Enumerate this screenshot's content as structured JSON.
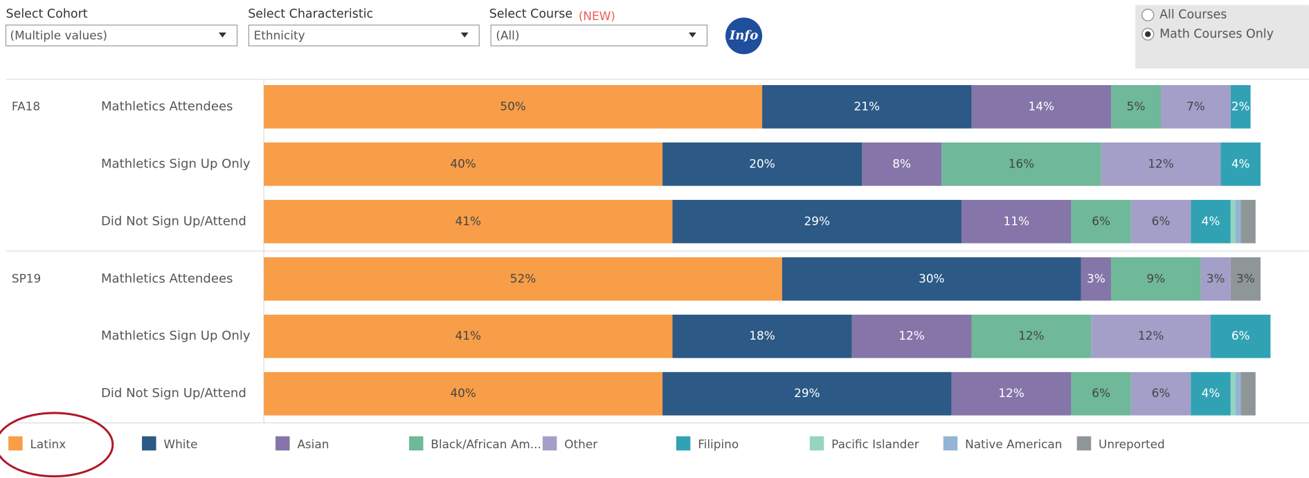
{
  "controls": {
    "cohort": {
      "label": "Select Cohort",
      "value": "(Multiple values)"
    },
    "characteristic": {
      "label": "Select Characteristic",
      "value": "Ethnicity"
    },
    "course": {
      "label": "Select Course",
      "badge": "(NEW)",
      "value": "(All)"
    },
    "info": "Info",
    "radio": {
      "options": [
        "All Courses",
        "Math Courses Only"
      ],
      "selected": 1
    }
  },
  "chart_data": {
    "type": "stacked_bar_horizontal",
    "cohorts": [
      "FA18",
      "SP19"
    ],
    "categories": [
      "Mathletics Attendees",
      "Mathletics Sign Up Only",
      "Did Not Sign Up/Attend",
      "Mathletics Attendees",
      "Mathletics Sign Up Only",
      "Did Not Sign Up/Attend"
    ],
    "xlim": [
      0,
      100
    ],
    "series": [
      {
        "name": "Latinx",
        "color": "#f89d48",
        "values": [
          50,
          40,
          41,
          52,
          41,
          40
        ],
        "value_labels": [
          "50%",
          "40%",
          "41%",
          "52%",
          "41%",
          "40%"
        ]
      },
      {
        "name": "White",
        "color": "#2c5985",
        "values": [
          21,
          20,
          29,
          30,
          18,
          29
        ],
        "value_labels": [
          "21%",
          "20%",
          "29%",
          "30%",
          "18%",
          "29%"
        ]
      },
      {
        "name": "Asian",
        "color": "#8675a8",
        "values": [
          14,
          8,
          11,
          3,
          12,
          12
        ],
        "value_labels": [
          "14%",
          "8%",
          "11%",
          "3%",
          "12%",
          "12%"
        ]
      },
      {
        "name": "Black/African Am...",
        "color": "#6fb899",
        "values": [
          5,
          16,
          6,
          9,
          12,
          6
        ],
        "value_labels": [
          "5%",
          "16%",
          "6%",
          "9%",
          "12%",
          "6%"
        ]
      },
      {
        "name": "Other",
        "color": "#a39fc9",
        "values": [
          7,
          12,
          6,
          3,
          12,
          6
        ],
        "value_labels": [
          "7%",
          "12%",
          "6%",
          "3%",
          "12%",
          "6%"
        ]
      },
      {
        "name": "Filipino",
        "color": "#31a2b4",
        "values": [
          2,
          4,
          4,
          null,
          6,
          4
        ],
        "value_labels": [
          "2%",
          "4%",
          "4%",
          null,
          "6%",
          "4%"
        ]
      },
      {
        "name": "Pacific Islander",
        "color": "#95d4c0",
        "values": [
          null,
          null,
          0.5,
          null,
          null,
          0.5
        ],
        "value_labels": [
          null,
          null,
          null,
          null,
          null,
          null
        ]
      },
      {
        "name": "Native American",
        "color": "#93b4d6",
        "values": [
          null,
          null,
          0.5,
          null,
          null,
          0.5
        ],
        "value_labels": [
          null,
          null,
          null,
          null,
          null,
          null
        ]
      },
      {
        "name": "Unreported",
        "color": "#8f9698",
        "values": [
          null,
          null,
          1.5,
          3,
          null,
          1.5
        ],
        "value_labels": [
          null,
          null,
          null,
          "3%",
          null,
          null
        ]
      }
    ]
  }
}
